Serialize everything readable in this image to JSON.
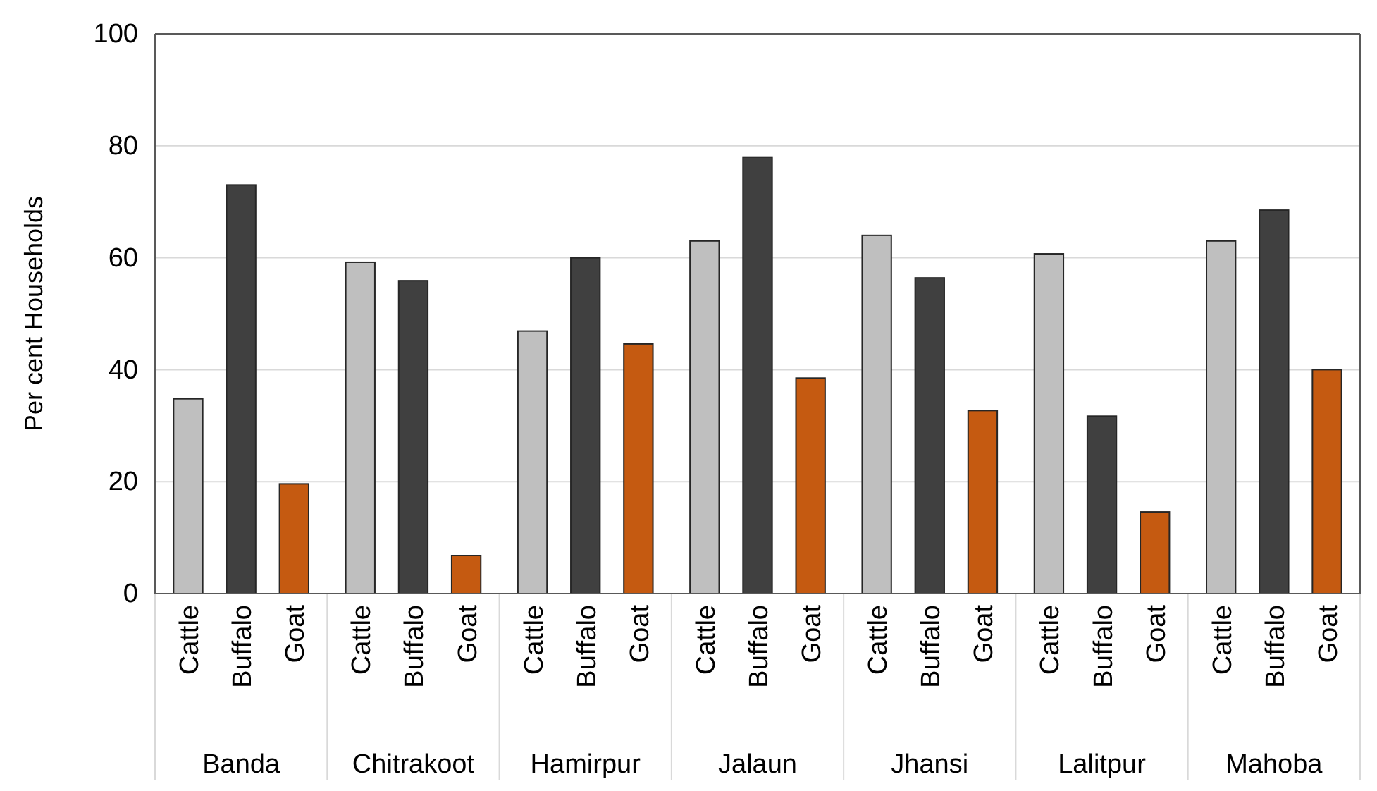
{
  "chart_data": {
    "type": "bar",
    "ylabel": "Per cent Households",
    "categories": [
      "Banda",
      "Chitrakoot",
      "Hamirpur",
      "Jalaun",
      "Jhansi",
      "Lalitpur",
      "Mahoba"
    ],
    "series": [
      {
        "name": "Cattle",
        "color": "#bfbfbf",
        "values": [
          34.8,
          59.2,
          46.9,
          63,
          64,
          60.7,
          63
        ]
      },
      {
        "name": "Buffalo",
        "color": "#404040",
        "values": [
          73,
          55.9,
          60,
          78,
          56.4,
          31.7,
          68.5
        ]
      },
      {
        "name": "Goat",
        "color": "#c55a11",
        "values": [
          19.6,
          6.8,
          44.6,
          38.5,
          32.7,
          14.6,
          40
        ]
      }
    ],
    "ylim": [
      0,
      100
    ],
    "yticks": [
      0,
      20,
      40,
      60,
      80,
      100
    ],
    "grid": "y",
    "legend": false
  }
}
